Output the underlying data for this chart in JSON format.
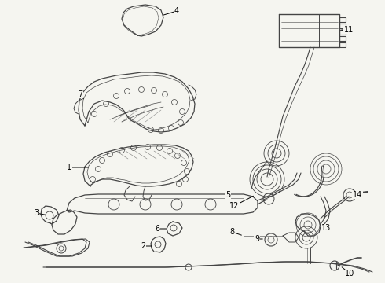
{
  "bg_color": "#f5f5f0",
  "line_color": "#444444",
  "text_color": "#000000",
  "fig_width": 4.9,
  "fig_height": 3.6,
  "dpi": 100
}
